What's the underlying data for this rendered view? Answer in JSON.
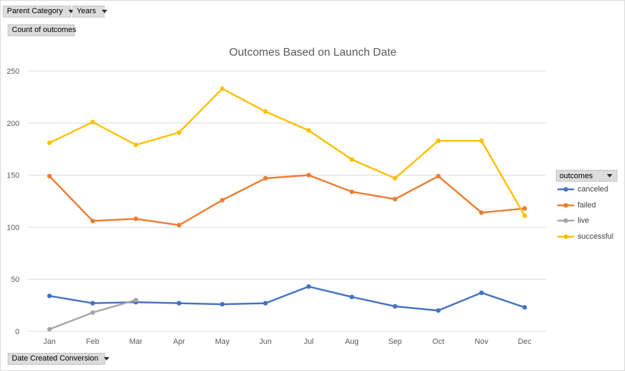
{
  "filters": {
    "parent_category": "Parent Category",
    "years": "Years",
    "values_field": "Count of outcomes",
    "axis_field": "Date Created Conversion"
  },
  "legend": {
    "title": "outcomes"
  },
  "chart_data": {
    "type": "line",
    "title": "Outcomes Based on Launch Date",
    "xlabel": "",
    "ylabel": "",
    "categories": [
      "Jan",
      "Feb",
      "Mar",
      "Apr",
      "May",
      "Jun",
      "Jul",
      "Aug",
      "Sep",
      "Oct",
      "Nov",
      "Dec"
    ],
    "ylim": [
      0,
      250
    ],
    "yticks": [
      0,
      50,
      100,
      150,
      200,
      250
    ],
    "grid": true,
    "legend_position": "right",
    "series": [
      {
        "name": "canceled",
        "color": "#4472c4",
        "values": [
          34,
          27,
          28,
          27,
          26,
          27,
          43,
          33,
          24,
          20,
          37,
          23
        ]
      },
      {
        "name": "failed",
        "color": "#ed7d31",
        "values": [
          149,
          106,
          108,
          102,
          126,
          147,
          150,
          134,
          127,
          149,
          114,
          118
        ]
      },
      {
        "name": "live",
        "color": "#a5a5a5",
        "values": [
          2,
          18,
          30,
          null,
          null,
          null,
          null,
          null,
          null,
          null,
          null,
          null
        ]
      },
      {
        "name": "successful",
        "color": "#ffc000",
        "values": [
          181,
          201,
          179,
          191,
          233,
          211,
          193,
          165,
          147,
          183,
          183,
          111
        ]
      }
    ]
  }
}
